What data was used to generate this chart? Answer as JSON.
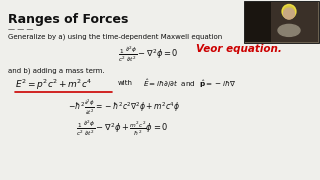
{
  "title": "Ranges of Forces",
  "background_color": "#efefeb",
  "text_color": "#111111",
  "red_color": "#cc0000",
  "line1": "Generalize by a) using the time-dependent Maxwell equation",
  "eq1": "$\\frac{1}{c^2}\\frac{\\partial^2\\phi}{\\partial t^2} - \\nabla^2\\phi = 0$",
  "handwritten": "Veor equation.",
  "line2": "and b) adding a mass term.",
  "eq2": "$E^2 = p^2c^2 + m^2c^4$",
  "eq2b": "with",
  "eq2c": "$\\hat{E} = i\\hbar\\partial/\\partial t$  and  $\\hat{\\mathbf{p}} = -i\\hbar\\nabla$",
  "eq3": "$-\\hbar^2\\frac{\\partial^2\\phi}{\\partial t^2} = -\\hbar^2 c^2 \\nabla^2\\phi + m^2c^4\\phi$",
  "eq4": "$\\frac{1}{c^2}\\frac{\\partial^2\\phi}{\\partial t^2} - \\nabla^2\\phi + \\frac{m^2c^2}{\\hbar^2}\\phi = 0$",
  "underline_color": "#cc0000",
  "dashes": "— — —"
}
